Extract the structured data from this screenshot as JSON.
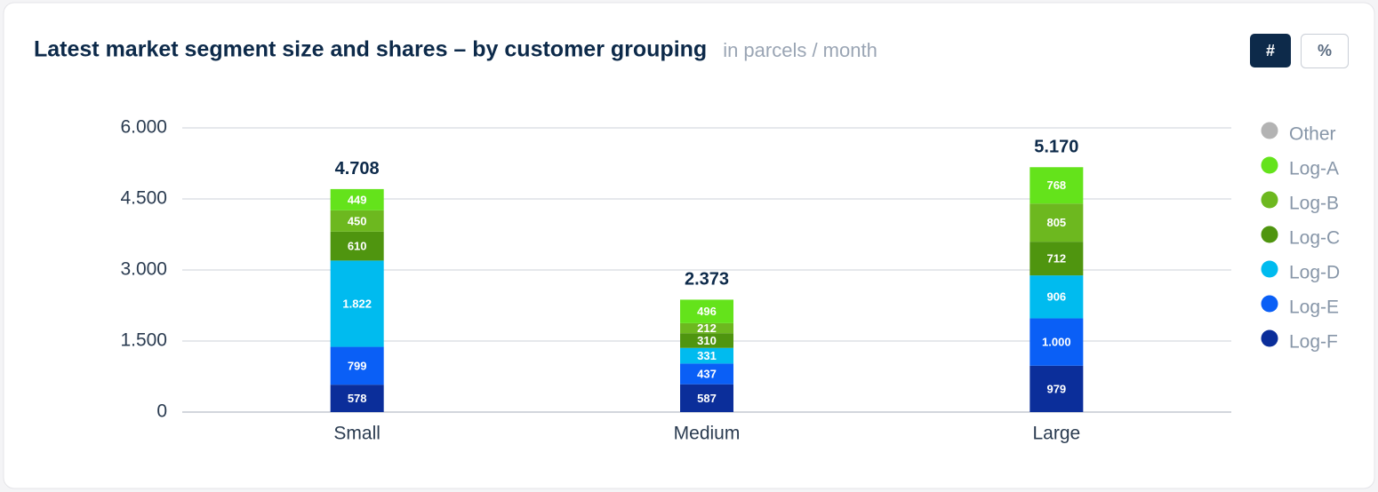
{
  "chart_data": {
    "type": "stacked_bar",
    "title": "Latest market segment size and shares – by customer grouping",
    "subtitle": "in parcels / month",
    "buttons": [
      "#",
      "%"
    ],
    "categories": [
      "Small",
      "Medium",
      "Large"
    ],
    "series": [
      {
        "name": "Other",
        "color": "#b3b3b3",
        "values": [
          0,
          0,
          0
        ]
      },
      {
        "name": "Log-A",
        "color": "#64e31b",
        "values": [
          449,
          496,
          768
        ],
        "value_labels": [
          "449",
          "496",
          "768"
        ]
      },
      {
        "name": "Log-B",
        "color": "#6db81f",
        "values": [
          450,
          212,
          805
        ],
        "value_labels": [
          "450",
          "212",
          "805"
        ]
      },
      {
        "name": "Log-C",
        "color": "#4f950f",
        "values": [
          610,
          310,
          712
        ],
        "value_labels": [
          "610",
          "310",
          "712"
        ]
      },
      {
        "name": "Log-D",
        "color": "#00bbef",
        "values": [
          1822,
          331,
          906
        ],
        "value_labels": [
          "1.822",
          "331",
          "906"
        ]
      },
      {
        "name": "Log-E",
        "color": "#0a5ff6",
        "values": [
          799,
          437,
          1000
        ],
        "value_labels": [
          "799",
          "437",
          "1.000"
        ]
      },
      {
        "name": "Log-F",
        "color": "#0b2e9a",
        "values": [
          578,
          587,
          979
        ],
        "value_labels": [
          "578",
          "587",
          "979"
        ]
      }
    ],
    "totals": {
      "values": [
        4708,
        2373,
        5170
      ],
      "labels": [
        "4.708",
        "2.373",
        "5.170"
      ]
    },
    "ylim": [
      0,
      6000
    ],
    "yticks": [
      0,
      {
        "value": 1500,
        "label": "1.500"
      },
      {
        "value": 3000,
        "label": "3.000"
      },
      {
        "value": 4500,
        "label": "4.500"
      },
      {
        "value": 6000,
        "label": "6.000"
      }
    ],
    "grid": true,
    "legend": "right"
  }
}
